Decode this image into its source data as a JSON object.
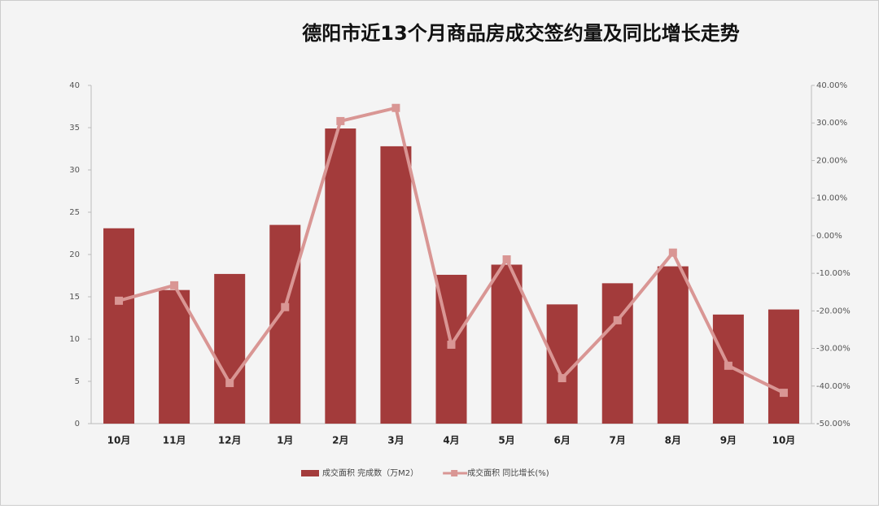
{
  "chart_data": {
    "type": "bar-line",
    "title": "德阳市近13个月商品房成交签约量及同比增长走势",
    "categories": [
      "10月",
      "11月",
      "12月",
      "1月",
      "2月",
      "3月",
      "4月",
      "5月",
      "6月",
      "7月",
      "8月",
      "9月",
      "10月"
    ],
    "series": [
      {
        "name": "成交面积 完成数（万M2）",
        "type": "bar",
        "color": "#a33b3b",
        "axis": "y",
        "values": [
          23.1,
          15.8,
          17.7,
          23.5,
          34.9,
          32.8,
          17.6,
          18.8,
          14.1,
          16.6,
          18.6,
          12.9,
          13.5
        ]
      },
      {
        "name": "成交面积 同比增长(%)",
        "type": "line",
        "color": "#d99694",
        "axis": "y2",
        "values": [
          -17.3,
          -13.2,
          -39.2,
          -19.0,
          30.5,
          34.0,
          -29.0,
          -6.3,
          -37.9,
          -22.5,
          -4.5,
          -34.6,
          -41.8
        ]
      }
    ],
    "ylim": [
      0,
      40
    ],
    "yticks": [
      0,
      5,
      10,
      15,
      20,
      25,
      30,
      35,
      40
    ],
    "y2lim": [
      -50,
      40
    ],
    "y2ticks": [
      {
        "value": 40,
        "label": "40.00%"
      },
      {
        "value": 30,
        "label": "30.00%"
      },
      {
        "value": 20,
        "label": "20.00%"
      },
      {
        "value": 10,
        "label": "10.00%"
      },
      {
        "value": 0,
        "label": "0.00%"
      },
      {
        "value": -10,
        "label": "-10.00%"
      },
      {
        "value": -20,
        "label": "-20.00%"
      },
      {
        "value": -30,
        "label": "-30.00%"
      },
      {
        "value": -40,
        "label": "-40.00%"
      },
      {
        "value": -50,
        "label": "-50.00%"
      }
    ],
    "legend": "bottom"
  }
}
